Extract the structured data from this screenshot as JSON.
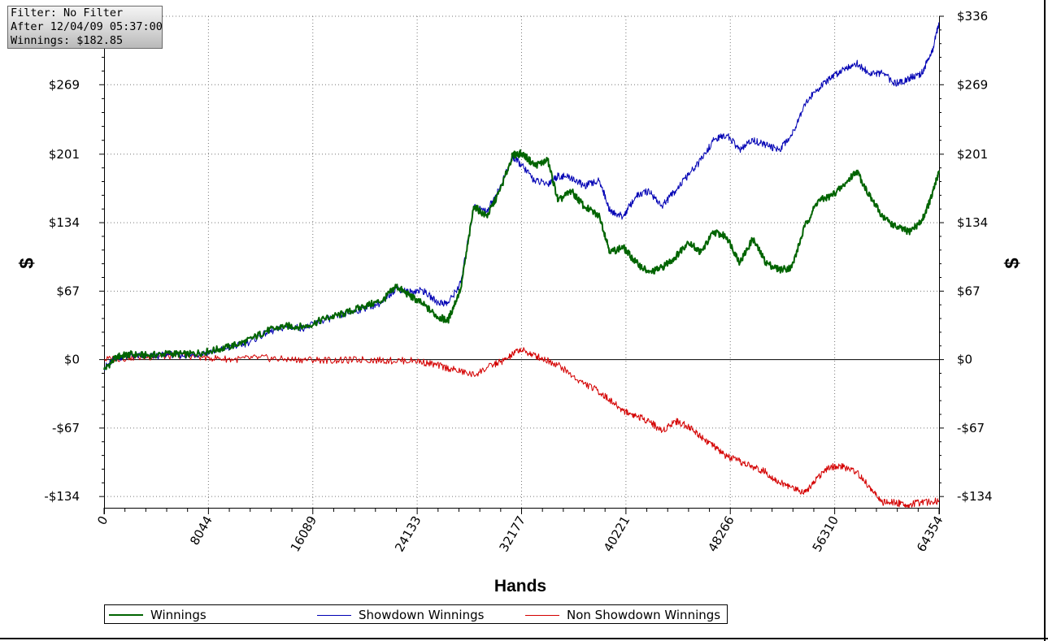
{
  "info_box": {
    "filter": "Filter: No Filter",
    "after": "After 12/04/09 05:37:00",
    "winnings": "Winnings: $182.85"
  },
  "legend": [
    {
      "label": "Winnings",
      "color": "#006400"
    },
    {
      "label": "Showdown Winnings",
      "color": "#0000b4"
    },
    {
      "label": "Non Showdown Winnings",
      "color": "#d40000"
    }
  ],
  "chart_data": {
    "type": "line",
    "title": "",
    "xlabel": "Hands",
    "ylabel": "$",
    "xlim": [
      0,
      64354
    ],
    "ylim": [
      -145,
      336
    ],
    "x_ticks": [
      0,
      8044,
      16089,
      24133,
      32177,
      40221,
      48266,
      56310,
      64354
    ],
    "x_tick_labels": [
      "0",
      "8044",
      "16089",
      "24133",
      "32177",
      "40221",
      "48266",
      "56310",
      "64354"
    ],
    "y_ticks": [
      -134,
      -67,
      0,
      67,
      134,
      201,
      269,
      336
    ],
    "y_tick_labels": [
      "-$134",
      "-$67",
      "$0",
      "$67",
      "$134",
      "$201",
      "$269",
      "$336"
    ],
    "grid": true,
    "legend_position": "bottom",
    "series": [
      {
        "name": "Winnings",
        "color": "#006400",
        "x": [
          0,
          1000,
          2000,
          3500,
          5000,
          6500,
          8000,
          9500,
          11000,
          12500,
          14000,
          15500,
          17000,
          18500,
          20000,
          21500,
          22500,
          23500,
          24500,
          25700,
          26500,
          27500,
          28500,
          29500,
          30500,
          31500,
          32200,
          33200,
          34200,
          35000,
          36000,
          37000,
          38200,
          39000,
          40000,
          41000,
          42000,
          43000,
          44000,
          45000,
          46000,
          47000,
          48000,
          49000,
          50000,
          51000,
          52000,
          53000,
          54000,
          55000,
          56000,
          57000,
          58000,
          59000,
          60000,
          61000,
          62000,
          63000,
          63800,
          64354
        ],
        "y": [
          -10,
          3,
          5,
          4,
          6,
          5,
          8,
          12,
          18,
          28,
          33,
          32,
          40,
          45,
          52,
          58,
          72,
          63,
          55,
          42,
          38,
          70,
          150,
          140,
          165,
          200,
          202,
          190,
          195,
          155,
          165,
          150,
          140,
          105,
          110,
          95,
          85,
          90,
          100,
          115,
          105,
          125,
          120,
          95,
          118,
          95,
          88,
          90,
          130,
          155,
          160,
          170,
          185,
          160,
          140,
          130,
          125,
          135,
          160,
          185
        ]
      },
      {
        "name": "Showdown Winnings",
        "color": "#0000b4",
        "x": [
          0,
          1000,
          2000,
          3500,
          5000,
          6500,
          8000,
          9500,
          11000,
          12500,
          14000,
          15500,
          17000,
          18500,
          20000,
          21500,
          22500,
          23500,
          24500,
          25700,
          26500,
          27500,
          28500,
          29500,
          30500,
          31500,
          32200,
          33200,
          34200,
          35000,
          36000,
          37000,
          38200,
          39000,
          40000,
          41000,
          42000,
          43000,
          44000,
          45000,
          46000,
          47000,
          48000,
          49000,
          50000,
          51000,
          52000,
          53000,
          54000,
          55000,
          56000,
          57000,
          58000,
          59000,
          60000,
          61000,
          62000,
          63000,
          63800,
          64354
        ],
        "y": [
          -8,
          2,
          4,
          3,
          5,
          4,
          7,
          11,
          16,
          26,
          32,
          31,
          39,
          44,
          50,
          56,
          70,
          66,
          68,
          56,
          55,
          75,
          150,
          145,
          168,
          198,
          190,
          175,
          172,
          180,
          178,
          170,
          175,
          145,
          140,
          160,
          165,
          150,
          165,
          180,
          195,
          215,
          220,
          205,
          215,
          210,
          205,
          220,
          250,
          265,
          275,
          285,
          290,
          280,
          280,
          270,
          275,
          280,
          300,
          330
        ]
      },
      {
        "name": "Non Showdown Winnings",
        "color": "#d40000",
        "x": [
          0,
          2000,
          4000,
          6000,
          8000,
          10000,
          12000,
          14000,
          16000,
          18000,
          20000,
          22000,
          24000,
          25500,
          27000,
          28500,
          30000,
          31000,
          32000,
          33000,
          34000,
          35000,
          36500,
          38000,
          39000,
          40000,
          41000,
          42000,
          43000,
          44000,
          45000,
          46000,
          47000,
          48000,
          49000,
          50000,
          51000,
          52000,
          53000,
          54000,
          55000,
          56000,
          57000,
          58000,
          59000,
          60000,
          61000,
          62000,
          63000,
          64354
        ],
        "y": [
          0,
          2,
          3,
          4,
          2,
          0,
          2,
          0,
          0,
          -1,
          0,
          -1,
          -1,
          -5,
          -10,
          -15,
          -5,
          0,
          10,
          5,
          0,
          -5,
          -20,
          -30,
          -40,
          -50,
          -55,
          -60,
          -70,
          -60,
          -65,
          -75,
          -85,
          -95,
          -100,
          -105,
          -110,
          -120,
          -125,
          -130,
          -115,
          -105,
          -105,
          -110,
          -125,
          -140,
          -140,
          -142,
          -140,
          -138
        ]
      }
    ]
  }
}
